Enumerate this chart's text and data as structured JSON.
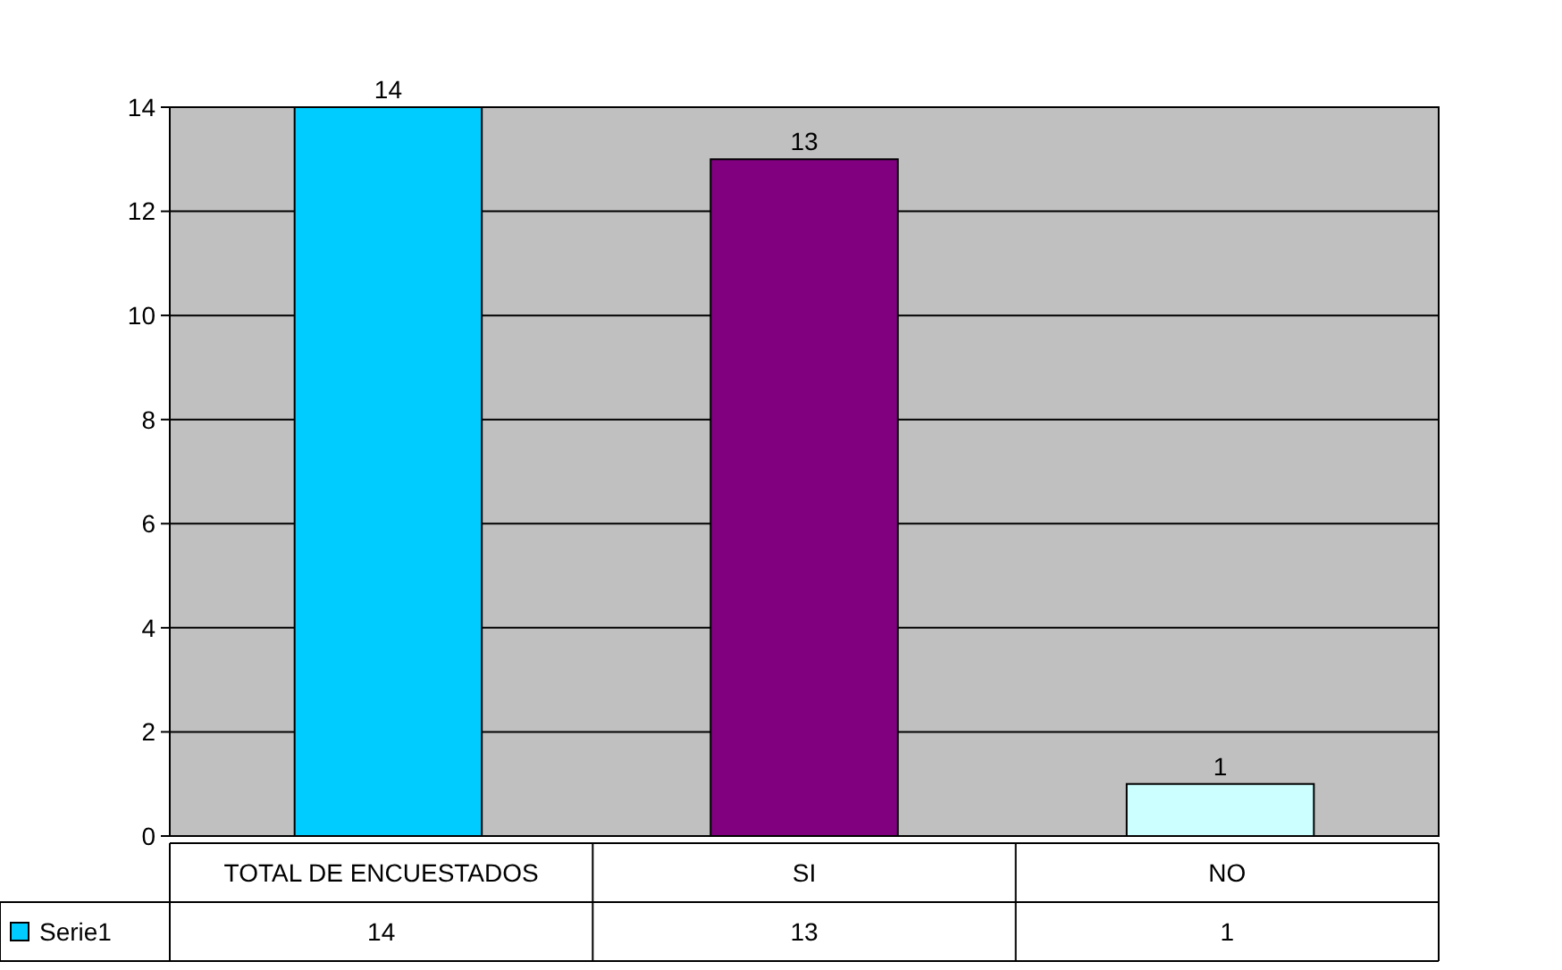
{
  "chart_data": {
    "type": "bar",
    "categories": [
      "TOTAL DE ENCUESTADOS",
      "SI",
      "NO"
    ],
    "series": [
      {
        "name": "Serie1",
        "color": "#00ccff",
        "colors": [
          "#00ccff",
          "#800080",
          "#ccffff"
        ],
        "values": [
          14,
          13,
          1
        ],
        "value_labels": [
          "14",
          "13",
          "1"
        ]
      }
    ],
    "ylim": [
      0,
      14
    ],
    "yticks": [
      0,
      2,
      4,
      6,
      8,
      10,
      12,
      14
    ],
    "annotations": [
      "14",
      "13",
      "1"
    ],
    "grid": "y",
    "data_labels": true,
    "legend": "bottom left"
  }
}
